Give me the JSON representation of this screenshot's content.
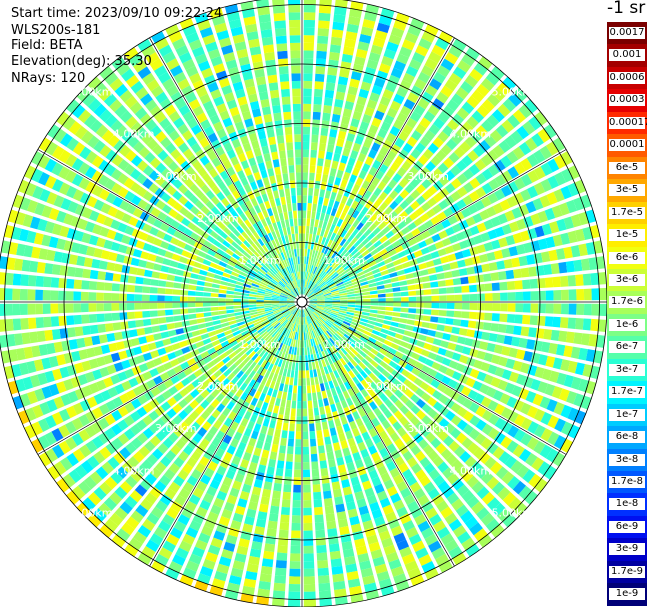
{
  "header": {
    "start_time": "Start time: 2023/09/10 09:22:24",
    "device": "WLS200s-181",
    "field": "Field: BETA",
    "elevation": "Elevation(deg): 35.30",
    "nrays": "NRays: 120"
  },
  "colorbar": {
    "unit": "-1 sr",
    "labels": [
      "0.0017",
      "0.001",
      "0.0006",
      "0.0003",
      "0.00017",
      "0.0001",
      "6e-5",
      "3e-5",
      "1.7e-5",
      "1e-5",
      "6e-6",
      "3e-6",
      "1.7e-6",
      "1e-6",
      "6e-7",
      "3e-7",
      "1.7e-7",
      "1e-7",
      "6e-8",
      "3e-8",
      "1.7e-8",
      "1e-8",
      "6e-9",
      "3e-9",
      "1.7e-9",
      "1e-9"
    ],
    "colors": [
      "#7a0000",
      "#a30000",
      "#c80000",
      "#e60000",
      "#ff2a00",
      "#ff5a00",
      "#ff8400",
      "#ffa800",
      "#ffd000",
      "#ffee00",
      "#f2ff10",
      "#cbff36",
      "#a8ff5a",
      "#7cff86",
      "#55ffaa",
      "#2affd4",
      "#00f4ff",
      "#00ccff",
      "#00a8ff",
      "#0080ff",
      "#0058ff",
      "#0030ff",
      "#0010f0",
      "#0000c8",
      "#0000a0",
      "#000078"
    ]
  },
  "chart_data": {
    "type": "heatmap",
    "projection": "polar (PPI)",
    "field": "BETA",
    "elevation_deg": 35.3,
    "n_rays": 120,
    "range_rings_km": [
      1,
      2,
      3,
      4,
      5
    ],
    "ring_labels": [
      "1.00km",
      "2.00km",
      "3.00km",
      "4.00km",
      "5.00km"
    ],
    "color_scale": "log",
    "value_range": [
      1e-09,
      0.0017
    ],
    "value_unit": "-1 sr",
    "dominant_values": [
      3e-07,
      1e-06,
      3e-06
    ],
    "features": [
      {
        "description": "elevated-backscatter arc",
        "bearing_deg": [
          185,
          255
        ],
        "range_km": [
          5.0,
          5.5
        ],
        "approx_value": 1e-05
      },
      {
        "description": "elevated-backscatter band",
        "bearing_deg": [
          60,
          120
        ],
        "range_km": [
          5.2,
          5.6
        ],
        "approx_value": 1e-05
      }
    ]
  }
}
